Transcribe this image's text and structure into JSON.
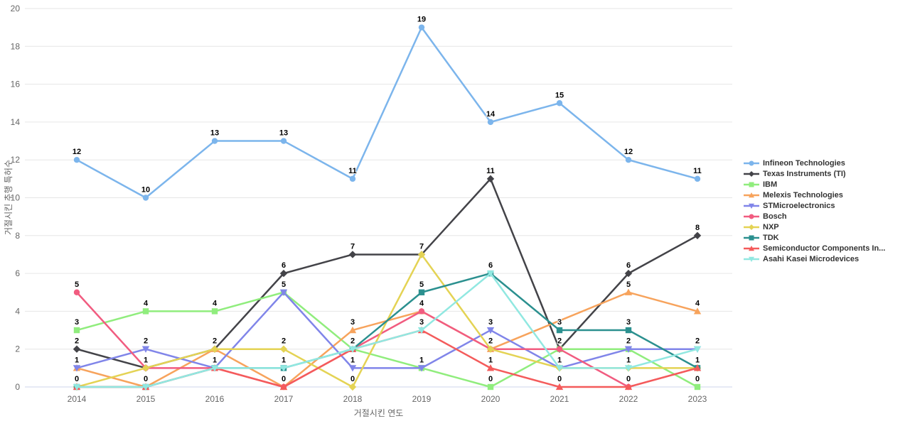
{
  "chart_data": {
    "type": "line",
    "title": "",
    "xlabel": "거절시킨 연도",
    "ylabel": "거절시킨 추행 특허수",
    "x": [
      "2014",
      "2015",
      "2016",
      "2017",
      "2018",
      "2019",
      "2020",
      "2021",
      "2022",
      "2023"
    ],
    "ylim": [
      0,
      20
    ],
    "ytick_step": 2,
    "grid": "horizontal",
    "legend_position": "right",
    "colors": {
      "grid_line": "#e6e6e6",
      "zero_line": "#ccd6eb",
      "tick_text": "#666666",
      "legend_text": "#333333",
      "data_label": "#000000"
    },
    "series": [
      {
        "name": "Infineon Technologies",
        "color": "#7cb5ec",
        "marker": "circle",
        "values": [
          12,
          10,
          13,
          13,
          11,
          19,
          14,
          15,
          12,
          11
        ]
      },
      {
        "name": "Texas Instruments (TI)",
        "color": "#434348",
        "marker": "diamond",
        "values": [
          2,
          1,
          2,
          6,
          7,
          7,
          11,
          2,
          6,
          8
        ]
      },
      {
        "name": "IBM",
        "color": "#90ed7d",
        "marker": "square",
        "values": [
          3,
          4,
          4,
          5,
          2,
          1,
          0,
          2,
          2,
          0
        ]
      },
      {
        "name": "Melexis Technologies",
        "color": "#f7a35c",
        "marker": "triangle",
        "values": [
          1,
          0,
          2,
          0,
          3,
          4,
          2,
          null,
          5,
          4
        ]
      },
      {
        "name": "STMicroelectronics",
        "color": "#8085e9",
        "marker": "triangle-down",
        "values": [
          1,
          2,
          1,
          5,
          1,
          1,
          3,
          1,
          2,
          2
        ]
      },
      {
        "name": "Bosch",
        "color": "#f15c80",
        "marker": "circle",
        "values": [
          5,
          1,
          1,
          0,
          2,
          4,
          2,
          2,
          0,
          1
        ]
      },
      {
        "name": "NXP",
        "color": "#e4d354",
        "marker": "diamond",
        "values": [
          0,
          1,
          2,
          2,
          0,
          7,
          2,
          1,
          1,
          1
        ]
      },
      {
        "name": "TDK",
        "color": "#2b908f",
        "marker": "square",
        "values": [
          0,
          0,
          1,
          1,
          2,
          5,
          6,
          3,
          3,
          1
        ]
      },
      {
        "name": "Semiconductor Components In...",
        "color": "#f45b5b",
        "marker": "triangle",
        "values": [
          0,
          0,
          1,
          0,
          2,
          3,
          1,
          0,
          0,
          1
        ]
      },
      {
        "name": "Asahi Kasei Microdevices",
        "color": "#91e8e1",
        "marker": "triangle-down",
        "values": [
          0,
          0,
          1,
          1,
          2,
          3,
          6,
          1,
          1,
          2
        ]
      }
    ]
  }
}
